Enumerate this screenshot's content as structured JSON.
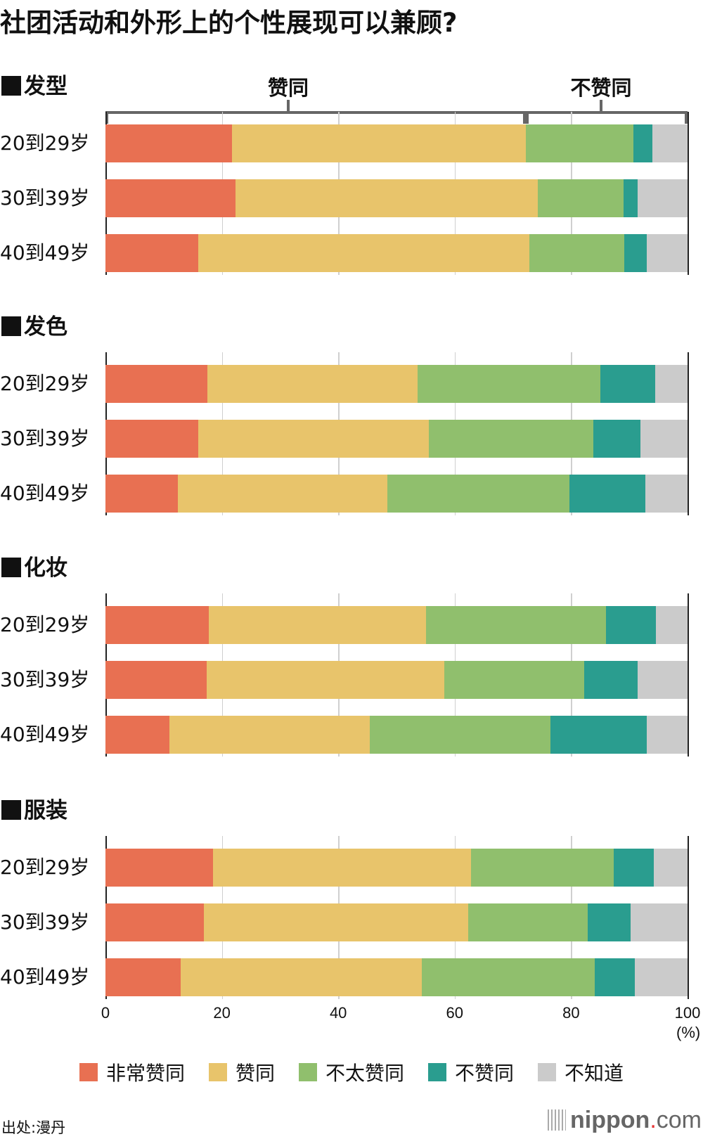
{
  "title": "社团活动和外形上的个性展现可以兼顾?",
  "bracket": {
    "agree_label": "赞同",
    "disagree_label": "不赞同"
  },
  "colors": {
    "strongly_agree": "#e87052",
    "agree": "#e8c46b",
    "somewhat_disagree": "#90bf6d",
    "disagree": "#2a9d8f",
    "dont_know": "#cbcbcb"
  },
  "legend": [
    {
      "label": "非常赞同",
      "color": "#e87052"
    },
    {
      "label": "赞同",
      "color": "#e8c46b"
    },
    {
      "label": "不太赞同",
      "color": "#90bf6d"
    },
    {
      "label": "不赞同",
      "color": "#2a9d8f"
    },
    {
      "label": "不知道",
      "color": "#cbcbcb"
    }
  ],
  "axis": {
    "ticks": [
      "0",
      "20",
      "40",
      "60",
      "80",
      "100"
    ],
    "unit": "(%)"
  },
  "source": "出处:漫丹",
  "logo": {
    "brand": "nippon",
    "dot": ".",
    "tld": "com"
  },
  "sections": [
    {
      "heading": "发型",
      "rows": [
        {
          "label": "20到29岁",
          "values": [
            21.7,
            50.5,
            18.5,
            3.3,
            6.0
          ]
        },
        {
          "label": "30到39岁",
          "values": [
            22.3,
            52.0,
            14.7,
            2.4,
            8.6
          ]
        },
        {
          "label": "40到49岁",
          "values": [
            15.9,
            56.9,
            16.3,
            3.9,
            7.0
          ]
        }
      ]
    },
    {
      "heading": "发色",
      "rows": [
        {
          "label": "20到29岁",
          "values": [
            17.5,
            36.1,
            31.4,
            9.4,
            5.6
          ]
        },
        {
          "label": "30到39岁",
          "values": [
            15.9,
            39.7,
            28.2,
            8.1,
            8.1
          ]
        },
        {
          "label": "40到49岁",
          "values": [
            12.4,
            36.0,
            31.3,
            13.1,
            7.2
          ]
        }
      ]
    },
    {
      "heading": "化妆",
      "rows": [
        {
          "label": "20到29岁",
          "values": [
            17.7,
            37.4,
            30.9,
            8.6,
            5.4
          ]
        },
        {
          "label": "30到39岁",
          "values": [
            17.4,
            40.8,
            24.1,
            9.1,
            8.6
          ]
        },
        {
          "label": "40到49岁",
          "values": [
            11.0,
            34.4,
            31.0,
            16.6,
            7.0
          ]
        }
      ]
    },
    {
      "heading": "服装",
      "rows": [
        {
          "label": "20到29岁",
          "values": [
            18.5,
            44.3,
            24.5,
            6.9,
            5.8
          ]
        },
        {
          "label": "30到39岁",
          "values": [
            16.9,
            45.4,
            20.5,
            7.4,
            9.8
          ]
        },
        {
          "label": "40到49岁",
          "values": [
            12.9,
            41.5,
            29.7,
            6.8,
            9.1
          ]
        }
      ]
    }
  ],
  "chart_data": {
    "type": "bar",
    "orientation": "horizontal",
    "stacked": true,
    "title": "社团活动和外形上的个性展现可以兼顾?",
    "xlabel": "(%)",
    "ylabel": "",
    "xlim": [
      0,
      100
    ],
    "xticks": [
      0,
      20,
      40,
      60,
      80,
      100
    ],
    "grid": true,
    "legend_position": "bottom",
    "annotations": [
      "赞同 (bracket over 非常赞同+赞同)",
      "不赞同 (bracket over 不太赞同+不赞同+不知道)"
    ],
    "series_names": [
      "非常赞同",
      "赞同",
      "不太赞同",
      "不赞同",
      "不知道"
    ],
    "panels": [
      {
        "title": "发型",
        "categories": [
          "20到29岁",
          "30到39岁",
          "40到49岁"
        ],
        "series": [
          {
            "name": "非常赞同",
            "values": [
              21.7,
              22.3,
              15.9
            ]
          },
          {
            "name": "赞同",
            "values": [
              50.5,
              52.0,
              56.9
            ]
          },
          {
            "name": "不太赞同",
            "values": [
              18.5,
              14.7,
              16.3
            ]
          },
          {
            "name": "不赞同",
            "values": [
              3.3,
              2.4,
              3.9
            ]
          },
          {
            "name": "不知道",
            "values": [
              6.0,
              8.6,
              7.0
            ]
          }
        ]
      },
      {
        "title": "发色",
        "categories": [
          "20到29岁",
          "30到39岁",
          "40到49岁"
        ],
        "series": [
          {
            "name": "非常赞同",
            "values": [
              17.5,
              15.9,
              12.4
            ]
          },
          {
            "name": "赞同",
            "values": [
              36.1,
              39.7,
              36.0
            ]
          },
          {
            "name": "不太赞同",
            "values": [
              31.4,
              28.2,
              31.3
            ]
          },
          {
            "name": "不赞同",
            "values": [
              9.4,
              8.1,
              13.1
            ]
          },
          {
            "name": "不知道",
            "values": [
              5.6,
              8.1,
              7.2
            ]
          }
        ]
      },
      {
        "title": "化妆",
        "categories": [
          "20到29岁",
          "30到39岁",
          "40到49岁"
        ],
        "series": [
          {
            "name": "非常赞同",
            "values": [
              17.7,
              17.4,
              11.0
            ]
          },
          {
            "name": "赞同",
            "values": [
              37.4,
              40.8,
              34.4
            ]
          },
          {
            "name": "不太赞同",
            "values": [
              30.9,
              24.1,
              31.0
            ]
          },
          {
            "name": "不赞同",
            "values": [
              8.6,
              9.1,
              16.6
            ]
          },
          {
            "name": "不知道",
            "values": [
              5.4,
              8.6,
              7.0
            ]
          }
        ]
      },
      {
        "title": "服装",
        "categories": [
          "20到29岁",
          "30到39岁",
          "40到49岁"
        ],
        "series": [
          {
            "name": "非常赞同",
            "values": [
              18.5,
              16.9,
              12.9
            ]
          },
          {
            "name": "赞同",
            "values": [
              44.3,
              45.4,
              41.5
            ]
          },
          {
            "name": "不太赞同",
            "values": [
              24.5,
              20.5,
              29.7
            ]
          },
          {
            "name": "不赞同",
            "values": [
              6.9,
              7.4,
              6.8
            ]
          },
          {
            "name": "不知道",
            "values": [
              5.8,
              9.8,
              9.1
            ]
          }
        ]
      }
    ]
  }
}
